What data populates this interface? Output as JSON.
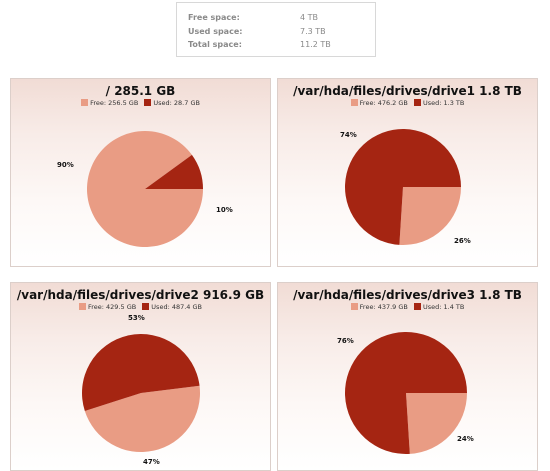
{
  "summary": {
    "free_label": "Free space:",
    "free_value": "4 TB",
    "used_label": "Used space:",
    "used_value": "7.3 TB",
    "total_label": "Total space:",
    "total_value": "11.2 TB"
  },
  "colors": {
    "free": "#e99c84",
    "used": "#a52512"
  },
  "panels": [
    {
      "title": "/   285.1 GB",
      "free_legend": "Free: 256.5 GB",
      "used_legend": "Used: 28.7 GB",
      "free_pct": "90%",
      "used_pct": "10%",
      "free_fraction": 0.9,
      "used_fraction": 0.1
    },
    {
      "title": "/var/hda/files/drives/drive1   1.8 TB",
      "free_legend": "Free: 476.2 GB",
      "used_legend": "Used: 1.3 TB",
      "free_pct": "26%",
      "used_pct": "74%",
      "free_fraction": 0.26,
      "used_fraction": 0.74
    },
    {
      "title": "/var/hda/files/drives/drive2   916.9 GB",
      "free_legend": "Free: 429.5 GB",
      "used_legend": "Used: 487.4 GB",
      "free_pct": "47%",
      "used_pct": "53%",
      "free_fraction": 0.47,
      "used_fraction": 0.53
    },
    {
      "title": "/var/hda/files/drives/drive3   1.8 TB",
      "free_legend": "Free: 437.9 GB",
      "used_legend": "Used: 1.4 TB",
      "free_pct": "24%",
      "used_pct": "76%",
      "free_fraction": 0.24,
      "used_fraction": 0.76
    }
  ]
}
